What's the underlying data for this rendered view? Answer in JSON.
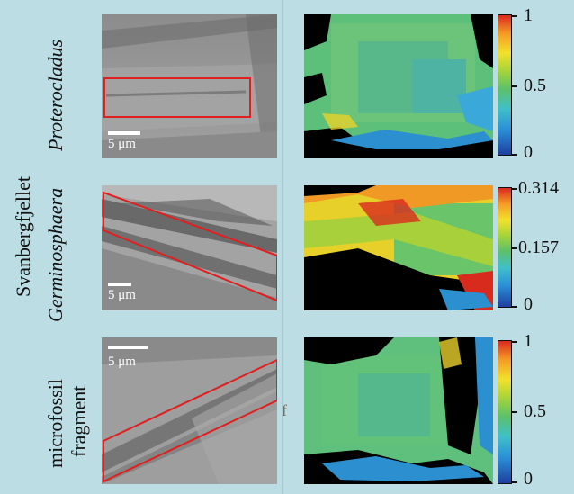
{
  "labels": {
    "row1_taxon": "Proterocladus",
    "row2_locality": "Svanbergfjellet",
    "row2_taxon": "Germinosphaera",
    "row3_line1": "microfossil",
    "row3_line2": "fragment"
  },
  "scale_bars": {
    "row1": "5 μm",
    "row2": "5 μm",
    "row3": "5 μm"
  },
  "colorbars": {
    "row1": {
      "max": "1",
      "mid": "0.5",
      "min": "0"
    },
    "row2": {
      "max": "0.314",
      "mid": "0.157",
      "min": "0"
    },
    "row3": {
      "max": "1",
      "mid": "0.5",
      "min": "0"
    }
  },
  "stray_marks": {
    "panel_letter": "f"
  },
  "colors": {
    "background": "#bcdde4",
    "roi_outline": "#e02020",
    "colormap_low": "#1e3fa0",
    "colormap_mid": "#5dc06a",
    "colormap_high": "#d92a1e"
  }
}
